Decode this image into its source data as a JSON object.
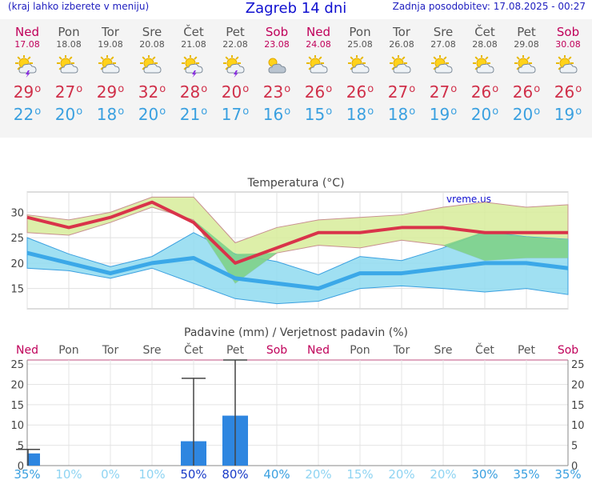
{
  "header": {
    "left_note": "(kraj lahko izberete v meniju)",
    "title": "Zagreb 14 dni",
    "updated": "Zadnja posodobitev: 17.08.2025 - 00:27"
  },
  "colors": {
    "weekend": "#c0005a",
    "weekday": "#555555",
    "max_line": "#d9334a",
    "min_line": "#3ba8e8",
    "max_band": "#d7ec9a",
    "min_band": "#8fdaf0",
    "overlap": "#80d28a",
    "bar": "#2e86e0",
    "prob_high": "#1a3cc8",
    "prob_low": "#8fd4f2"
  },
  "days": [
    {
      "name": "Ned",
      "date": "17.08",
      "max": "29",
      "min": "22",
      "icon": "sun-cloud-storm-icon",
      "weekend": true
    },
    {
      "name": "Pon",
      "date": "18.08",
      "max": "27",
      "min": "20",
      "icon": "sun-cloud-icon",
      "weekend": false
    },
    {
      "name": "Tor",
      "date": "19.08",
      "max": "29",
      "min": "18",
      "icon": "sun-cloud-icon",
      "weekend": false
    },
    {
      "name": "Sre",
      "date": "20.08",
      "max": "32",
      "min": "20",
      "icon": "sun-cloud-icon",
      "weekend": false
    },
    {
      "name": "Čet",
      "date": "21.08",
      "max": "28",
      "min": "21",
      "icon": "sun-cloud-storm-icon",
      "weekend": false
    },
    {
      "name": "Pet",
      "date": "22.08",
      "max": "20",
      "min": "17",
      "icon": "sun-cloud-storm-icon",
      "weekend": false
    },
    {
      "name": "Sob",
      "date": "23.08",
      "max": "23",
      "min": "16",
      "icon": "cloudy-icon",
      "weekend": true
    },
    {
      "name": "Ned",
      "date": "24.08",
      "max": "26",
      "min": "15",
      "icon": "sun-cloud-icon",
      "weekend": true
    },
    {
      "name": "Pon",
      "date": "25.08",
      "max": "26",
      "min": "18",
      "icon": "sun-cloud-icon",
      "weekend": false
    },
    {
      "name": "Tor",
      "date": "26.08",
      "max": "27",
      "min": "18",
      "icon": "sun-cloud-icon",
      "weekend": false
    },
    {
      "name": "Sre",
      "date": "27.08",
      "max": "27",
      "min": "19",
      "icon": "sun-cloud-icon",
      "weekend": false
    },
    {
      "name": "Čet",
      "date": "28.08",
      "max": "26",
      "min": "20",
      "icon": "sun-cloud-icon",
      "weekend": false
    },
    {
      "name": "Pet",
      "date": "29.08",
      "max": "26",
      "min": "20",
      "icon": "sun-cloud-icon",
      "weekend": false
    },
    {
      "name": "Sob",
      "date": "30.08",
      "max": "26",
      "min": "19",
      "icon": "sun-cloud-icon",
      "weekend": true
    }
  ],
  "chart_data": [
    {
      "type": "line",
      "title": "Temperatura (°C)",
      "watermark": "vreme.us",
      "ylim": [
        11,
        34
      ],
      "yticks": [
        15,
        20,
        25,
        30
      ],
      "grid": true,
      "series": [
        {
          "name": "max",
          "values": [
            29,
            27,
            29,
            32,
            28,
            20,
            23,
            26,
            26,
            27,
            27,
            26,
            26,
            26
          ],
          "band_low": [
            26,
            25.5,
            28,
            31,
            28.5,
            16,
            22,
            23.5,
            23,
            24.5,
            23.5,
            20.5,
            21,
            21
          ],
          "band_high": [
            29.5,
            28.5,
            30,
            33,
            33,
            24,
            27,
            28.5,
            29,
            29.5,
            31,
            32,
            31,
            31.5
          ]
        },
        {
          "name": "min",
          "values": [
            22,
            20,
            18,
            20,
            21,
            17,
            16,
            15,
            18,
            18,
            19,
            20,
            20,
            19
          ],
          "band_low": [
            19,
            18.5,
            17,
            19,
            16,
            13,
            12,
            12.5,
            15,
            15.5,
            15,
            14.3,
            15,
            13.8
          ],
          "band_high": [
            25,
            21.8,
            19.3,
            21.3,
            26,
            21.8,
            20.3,
            17.7,
            21.3,
            20.5,
            23,
            26.2,
            25.2,
            24.7
          ]
        }
      ]
    },
    {
      "type": "bar",
      "title": "Padavine (mm) / Verjetnost padavin (%)",
      "ylim": [
        0,
        26
      ],
      "yticks": [
        0,
        5,
        10,
        15,
        20,
        25
      ],
      "categories": [
        "Ned",
        "Pon",
        "Tor",
        "Sre",
        "Čet",
        "Pet",
        "Sob",
        "Ned",
        "Pon",
        "Tor",
        "Sre",
        "Čet",
        "Pet",
        "Sob"
      ],
      "values": [
        3,
        0,
        0,
        0,
        6,
        12.3,
        0,
        0,
        0,
        0,
        0,
        0,
        0,
        0
      ],
      "error_high": [
        4,
        0,
        0,
        0,
        21.5,
        26,
        0,
        0,
        0,
        0,
        0,
        0,
        0,
        0
      ],
      "probabilities": [
        "35%",
        "10%",
        "0%",
        "10%",
        "50%",
        "80%",
        "40%",
        "20%",
        "15%",
        "20%",
        "20%",
        "30%",
        "35%",
        "35%"
      ]
    }
  ]
}
